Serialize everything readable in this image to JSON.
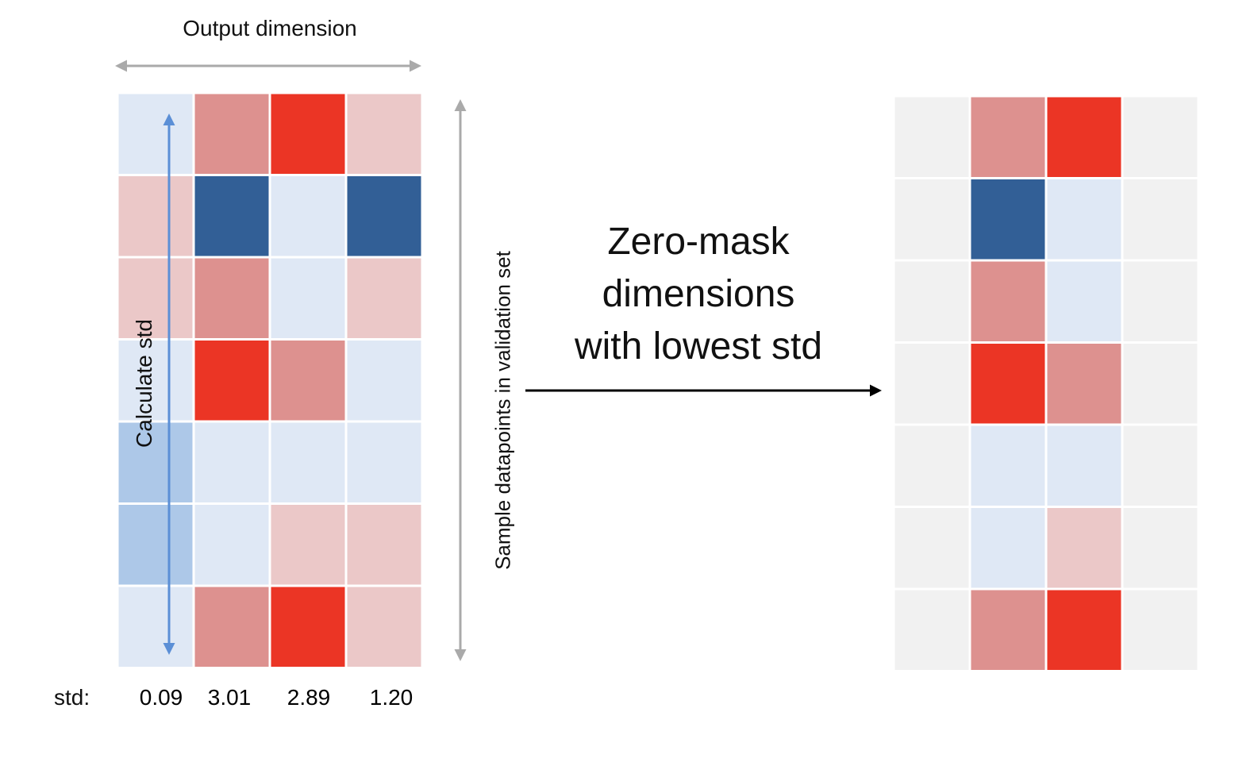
{
  "labels": {
    "output_dimension": "Output dimension",
    "sample_axis": "Sample datapoints in validation set",
    "calculate_std": "Calculate std",
    "center_lines": [
      "Zero-mask",
      "dimensions",
      "with lowest std"
    ],
    "std_prefix": "std:"
  },
  "std_values": [
    "0.09",
    "3.01",
    "2.89",
    "1.20"
  ],
  "colors": {
    "light_blue": "#dfe8f5",
    "mid_blue": "#adc8e8",
    "dark_blue": "#325f96",
    "light_red": "#ebc8c8",
    "mid_red": "#dd918f",
    "bright_red": "#eb3525",
    "masked_grey": "#f1f1f1",
    "arrow_grey": "#aaaaaa",
    "arrow_blue": "#5b8fd6",
    "arrow_black": "#000000"
  },
  "left_matrix": [
    [
      "light_blue",
      "mid_red",
      "bright_red",
      "light_red"
    ],
    [
      "light_red",
      "dark_blue",
      "light_blue",
      "dark_blue"
    ],
    [
      "light_red",
      "mid_red",
      "light_blue",
      "light_red"
    ],
    [
      "light_blue",
      "bright_red",
      "mid_red",
      "light_blue"
    ],
    [
      "mid_blue",
      "light_blue",
      "light_blue",
      "light_blue"
    ],
    [
      "mid_blue",
      "light_blue",
      "light_red",
      "light_red"
    ],
    [
      "light_blue",
      "mid_red",
      "bright_red",
      "light_red"
    ]
  ],
  "right_matrix": [
    [
      "masked_grey",
      "mid_red",
      "bright_red",
      "masked_grey"
    ],
    [
      "masked_grey",
      "dark_blue",
      "light_blue",
      "masked_grey"
    ],
    [
      "masked_grey",
      "mid_red",
      "light_blue",
      "masked_grey"
    ],
    [
      "masked_grey",
      "bright_red",
      "mid_red",
      "masked_grey"
    ],
    [
      "masked_grey",
      "light_blue",
      "light_blue",
      "masked_grey"
    ],
    [
      "masked_grey",
      "light_blue",
      "light_red",
      "masked_grey"
    ],
    [
      "masked_grey",
      "mid_red",
      "bright_red",
      "masked_grey"
    ]
  ]
}
